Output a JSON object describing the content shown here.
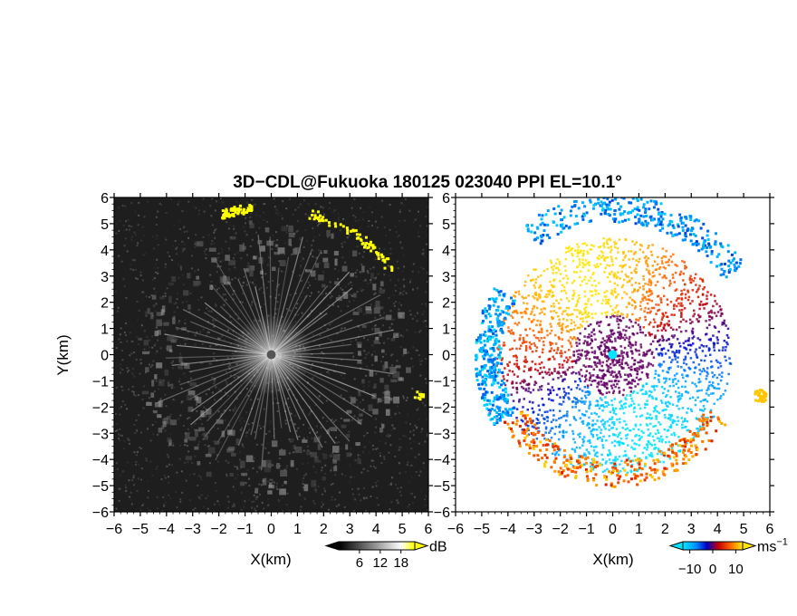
{
  "figure": {
    "title": "3D−CDL@Fukuoka 180125 023040 PPI EL=10.1°"
  },
  "chart_data": [
    {
      "type": "heatmap",
      "panel": "left",
      "variable": "intensity",
      "xlabel": "X(km)",
      "ylabel": "Y(km)",
      "xlim": [
        -6,
        6
      ],
      "ylim": [
        -6,
        6
      ],
      "xticks": [
        "−6",
        "−5",
        "−4",
        "−3",
        "−2",
        "−1",
        "0",
        "1",
        "2",
        "3",
        "4",
        "5",
        "6"
      ],
      "yticks": [
        "6",
        "5",
        "4",
        "3",
        "2",
        "1",
        "0",
        "−1",
        "−2",
        "−3",
        "−4",
        "−5",
        "−6"
      ],
      "colorbar": {
        "unit": "dB",
        "ticks": [
          6,
          12,
          18
        ],
        "tick_labels": [
          "6",
          "12",
          "18"
        ],
        "range": [
          0,
          22
        ],
        "colormap": [
          "#000000",
          "#333333",
          "#666666",
          "#999999",
          "#cccccc",
          "#ffffff",
          "#ffff00"
        ]
      },
      "background_color": "#1e1e1e",
      "radar_center": [
        0,
        0
      ],
      "features": [
        {
          "name": "radial-streaks",
          "from_r_km": 0,
          "to_r_km": 4.8,
          "count": 64
        },
        {
          "name": "ring-echoes",
          "ring_radius_km": 5.2
        },
        {
          "name": "yellow-arc-ne",
          "theta_deg": [
            35,
            75
          ],
          "radius_km": 5.6
        },
        {
          "name": "yellow-arc-n",
          "theta_deg": [
            98,
            110
          ],
          "radius_km": 5.7
        },
        {
          "name": "yellow-patch-e",
          "x_km": 5.6,
          "y_km": -1.5
        }
      ]
    },
    {
      "type": "heatmap",
      "panel": "right",
      "variable": "radial velocity",
      "xlabel": "X(km)",
      "ylabel": "",
      "xlim": [
        -6,
        6
      ],
      "ylim": [
        -6,
        6
      ],
      "xticks": [
        "−6",
        "−5",
        "−4",
        "−3",
        "−2",
        "−1",
        "0",
        "1",
        "2",
        "3",
        "4",
        "5",
        "6"
      ],
      "yticks": [
        "6",
        "5",
        "4",
        "3",
        "2",
        "1",
        "0",
        "−1",
        "−2",
        "−3",
        "−4",
        "−5",
        "−6"
      ],
      "colorbar": {
        "unit": "ms",
        "unit_exponent": "−1",
        "ticks": [
          -10,
          0,
          10
        ],
        "tick_labels": [
          "−10",
          "0",
          "10"
        ],
        "range": [
          -13,
          13
        ],
        "colormap": [
          "#00e5ff",
          "#0096ff",
          "#0000c8",
          "#c80000",
          "#ff6400",
          "#ffe600"
        ]
      },
      "background_color": "#ffffff",
      "radar_center": [
        0,
        0
      ],
      "features": [
        {
          "name": "velocity-fan",
          "from_r_km": 0,
          "to_r_km": 4.5
        },
        {
          "name": "northern-arc",
          "theta_deg": [
            35,
            125
          ],
          "radius_km": 5.6
        },
        {
          "name": "southern-arc",
          "theta_deg": [
            210,
            330
          ],
          "radius_km": 4.5
        },
        {
          "name": "west-band",
          "theta_deg": [
            150,
            210
          ],
          "radius_km": 4.8
        },
        {
          "name": "east-patch",
          "x_km": 5.6,
          "y_km": -1.5
        }
      ]
    }
  ]
}
